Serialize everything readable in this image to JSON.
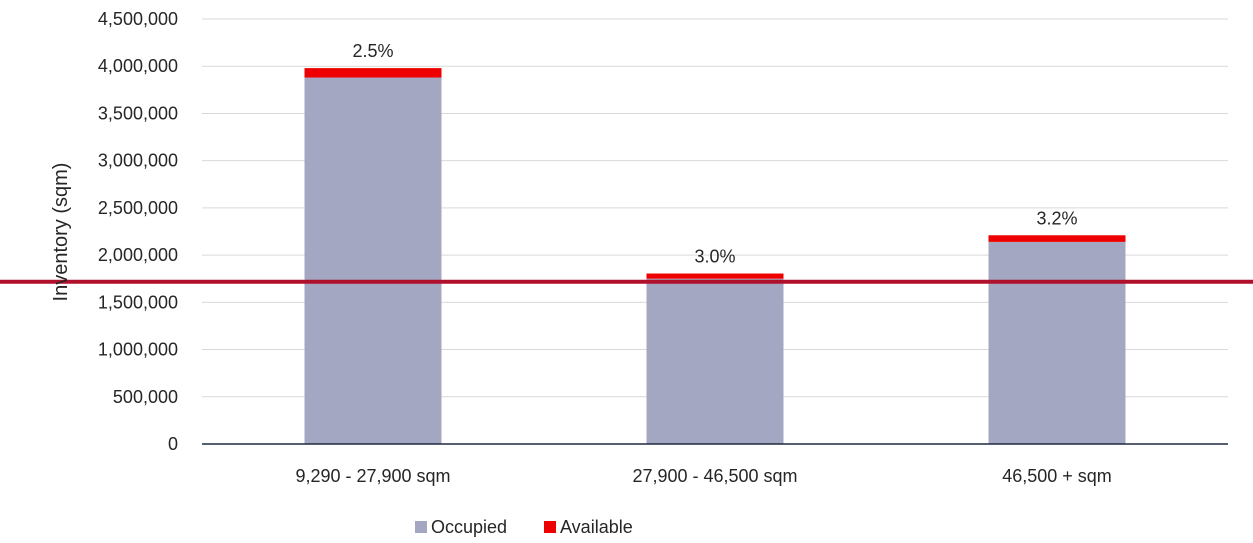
{
  "chart_data": {
    "type": "bar",
    "stacked": true,
    "categories": [
      "9,290 - 27,900 sqm",
      "27,900 - 46,500 sqm",
      "46,500 + sqm"
    ],
    "series": [
      {
        "name": "Occupied",
        "values": [
          3880000,
          1750000,
          2140000
        ],
        "color": "#A3A7C2"
      },
      {
        "name": "Available",
        "values": [
          100000,
          55000,
          70000
        ],
        "color": "#EE0000"
      }
    ],
    "data_labels": [
      "2.5%",
      "3.0%",
      "3.2%"
    ],
    "ylabel": "Inventory (sqm)",
    "xlabel": "",
    "ylim": [
      0,
      4500000
    ],
    "yticks": [
      0,
      500000,
      1000000,
      1500000,
      2000000,
      2500000,
      3000000,
      3500000,
      4000000,
      4500000
    ],
    "ytick_labels": [
      "0",
      "500,000",
      "1,000,000",
      "1,500,000",
      "2,000,000",
      "2,500,000",
      "3,000,000",
      "3,500,000",
      "4,000,000",
      "4,500,000"
    ],
    "reference_line": {
      "value": 1750000,
      "color": "#B0102C"
    },
    "grid": true,
    "legend_position": "bottom-center",
    "axis_color": "#1F2A44",
    "grid_color": "#D9D9D9"
  }
}
